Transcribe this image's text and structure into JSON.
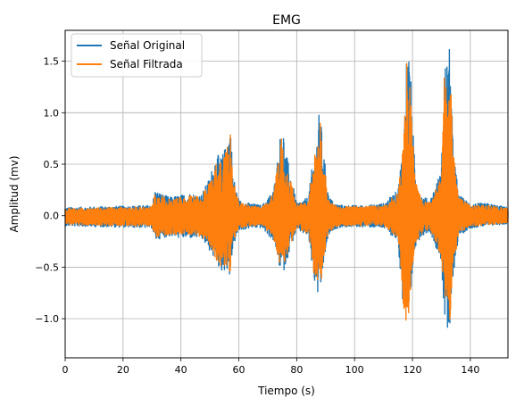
{
  "chart_data": {
    "type": "line",
    "title": "EMG",
    "xlabel": "Tiempo (s)",
    "ylabel": "Amplitud (mv)",
    "xlim": [
      0,
      153
    ],
    "ylim": [
      -1.38,
      1.8
    ],
    "xticks": [
      0,
      20,
      40,
      60,
      80,
      100,
      120,
      140
    ],
    "yticks": [
      -1.0,
      -0.5,
      0.0,
      0.5,
      1.0,
      1.5
    ],
    "xtick_labels": [
      "0",
      "20",
      "40",
      "60",
      "80",
      "100",
      "120",
      "140"
    ],
    "ytick_labels": [
      "−1.0",
      "−0.5",
      "0.0",
      "0.5",
      "1.0",
      "1.5"
    ],
    "grid": true,
    "legend_position": "upper-left",
    "series": [
      {
        "name": "Señal Original",
        "color": "#1f77b4",
        "envelope": {
          "x": [
            0,
            30,
            31,
            33,
            36,
            40,
            43,
            47,
            50,
            52,
            54,
            56,
            57,
            58,
            60,
            64,
            68,
            72,
            74,
            75,
            76,
            78,
            80,
            84,
            86,
            87,
            88,
            89,
            90,
            91,
            93,
            96,
            100,
            104,
            110,
            115,
            117,
            118,
            119,
            120,
            121,
            123,
            126,
            130,
            131,
            132,
            133,
            134,
            136,
            140,
            146,
            153
          ],
          "upper": [
            0.08,
            0.1,
            0.25,
            0.22,
            0.18,
            0.2,
            0.22,
            0.2,
            0.38,
            0.6,
            0.57,
            0.72,
            0.96,
            0.4,
            0.15,
            0.12,
            0.1,
            0.25,
            0.7,
            0.97,
            0.65,
            0.4,
            0.12,
            0.18,
            0.62,
            0.8,
            1.07,
            0.7,
            0.45,
            0.2,
            0.12,
            0.1,
            0.1,
            0.1,
            0.12,
            0.25,
            0.8,
            1.63,
            1.62,
            0.95,
            0.4,
            0.2,
            0.15,
            0.45,
            1.5,
            1.55,
            1.65,
            0.7,
            0.2,
            0.12,
            0.12,
            0.08
          ],
          "lower": [
            -0.1,
            -0.12,
            -0.25,
            -0.22,
            -0.2,
            -0.22,
            -0.22,
            -0.22,
            -0.35,
            -0.45,
            -0.55,
            -0.52,
            -0.62,
            -0.3,
            -0.15,
            -0.12,
            -0.12,
            -0.25,
            -0.5,
            -0.58,
            -0.5,
            -0.3,
            -0.14,
            -0.2,
            -0.65,
            -0.75,
            -0.86,
            -0.55,
            -0.35,
            -0.2,
            -0.13,
            -0.11,
            -0.11,
            -0.11,
            -0.12,
            -0.25,
            -1.05,
            -1.12,
            -1.0,
            -0.55,
            -0.3,
            -0.2,
            -0.15,
            -0.45,
            -1.0,
            -1.22,
            -1.2,
            -0.6,
            -0.2,
            -0.12,
            -0.1,
            -0.08
          ]
        }
      },
      {
        "name": "Señal Filtrada",
        "color": "#ff7f0e",
        "envelope": {
          "x": [
            0,
            30,
            31,
            33,
            36,
            40,
            43,
            47,
            50,
            52,
            54,
            56,
            57,
            58,
            60,
            64,
            68,
            72,
            74,
            75,
            76,
            78,
            80,
            84,
            86,
            87,
            88,
            89,
            90,
            91,
            93,
            96,
            100,
            104,
            110,
            115,
            117,
            118,
            119,
            120,
            121,
            123,
            126,
            130,
            131,
            132,
            133,
            134,
            136,
            140,
            146,
            153
          ],
          "upper": [
            0.07,
            0.09,
            0.23,
            0.2,
            0.16,
            0.18,
            0.2,
            0.18,
            0.35,
            0.55,
            0.52,
            0.66,
            0.85,
            0.36,
            0.13,
            0.1,
            0.09,
            0.22,
            0.63,
            0.85,
            0.58,
            0.36,
            0.1,
            0.16,
            0.55,
            0.72,
            0.97,
            0.62,
            0.4,
            0.18,
            0.1,
            0.09,
            0.09,
            0.09,
            0.1,
            0.22,
            0.72,
            1.52,
            1.46,
            0.86,
            0.36,
            0.18,
            0.13,
            0.4,
            1.38,
            1.4,
            1.5,
            0.63,
            0.18,
            0.1,
            0.1,
            0.07
          ],
          "lower": [
            -0.09,
            -0.1,
            -0.22,
            -0.2,
            -0.18,
            -0.2,
            -0.2,
            -0.2,
            -0.32,
            -0.42,
            -0.5,
            -0.48,
            -0.56,
            -0.27,
            -0.13,
            -0.1,
            -0.1,
            -0.22,
            -0.46,
            -0.53,
            -0.45,
            -0.27,
            -0.12,
            -0.18,
            -0.58,
            -0.68,
            -0.78,
            -0.5,
            -0.31,
            -0.18,
            -0.11,
            -0.1,
            -0.1,
            -0.1,
            -0.1,
            -0.22,
            -0.95,
            -1.04,
            -0.92,
            -0.5,
            -0.27,
            -0.18,
            -0.13,
            -0.4,
            -0.9,
            -1.1,
            -1.08,
            -0.54,
            -0.18,
            -0.1,
            -0.09,
            -0.07
          ]
        }
      }
    ]
  },
  "ui": {
    "background_color": "#ffffff",
    "grid_color": "#b0b0b0",
    "legend_edge_color": "#cccccc"
  }
}
